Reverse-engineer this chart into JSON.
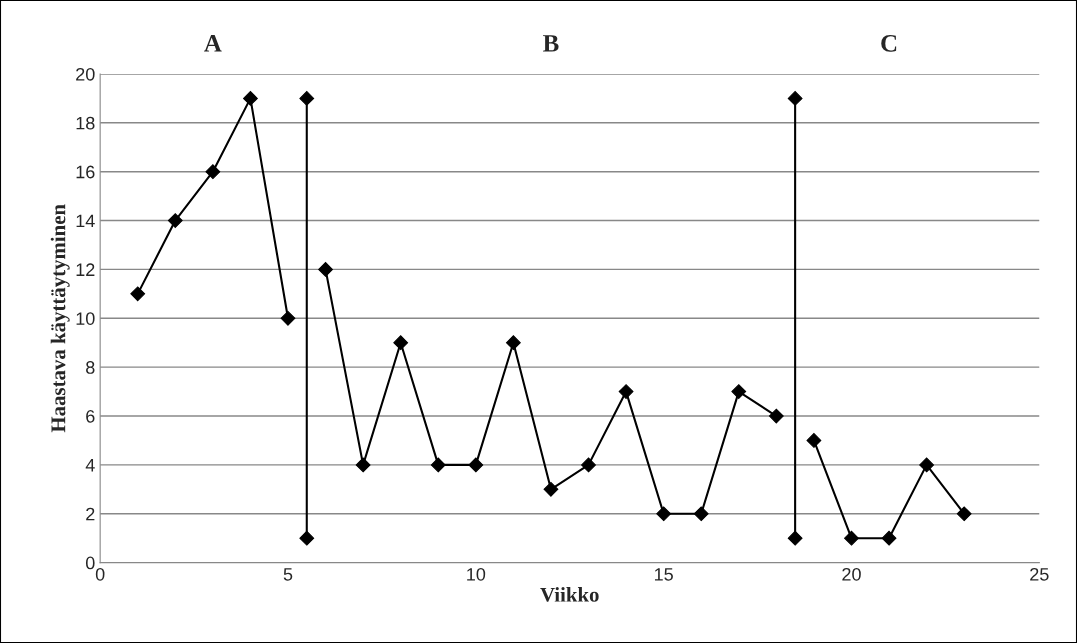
{
  "chart_data": {
    "type": "line",
    "xlabel": "Viikko",
    "ylabel": "Haastava käyttäytyminen",
    "annotations": [
      "A",
      "B",
      "C"
    ],
    "series": [
      {
        "color": "#000000",
        "x": [
          1,
          2,
          3,
          4,
          5
        ],
        "values": [
          11,
          14,
          16,
          19,
          10
        ]
      },
      {
        "color": "#000000",
        "x": [
          6,
          7,
          8,
          9,
          10,
          11,
          12,
          13,
          14,
          15,
          16,
          17,
          18
        ],
        "values": [
          12,
          4,
          9,
          4,
          4,
          9,
          3,
          4,
          7,
          2,
          2,
          7,
          6
        ]
      },
      {
        "color": "#000000",
        "x": [
          19,
          20,
          21,
          22,
          23
        ],
        "values": [
          5,
          1,
          1,
          4,
          2
        ]
      },
      {
        "color": "#000000",
        "x": [
          5.5,
          5.5
        ],
        "values": [
          1,
          19
        ]
      },
      {
        "color": "#000000",
        "x": [
          18.5,
          18.5
        ],
        "values": [
          1,
          19
        ]
      }
    ],
    "xlim": [
      0,
      25
    ],
    "xticks": [
      0,
      5,
      10,
      15,
      20,
      25
    ],
    "ylim": [
      0,
      20
    ],
    "yticks": [
      0,
      2,
      4,
      6,
      8,
      10,
      12,
      14,
      16,
      18,
      20
    ],
    "grid": "y",
    "marker": "diamond",
    "line_style": "solid"
  }
}
